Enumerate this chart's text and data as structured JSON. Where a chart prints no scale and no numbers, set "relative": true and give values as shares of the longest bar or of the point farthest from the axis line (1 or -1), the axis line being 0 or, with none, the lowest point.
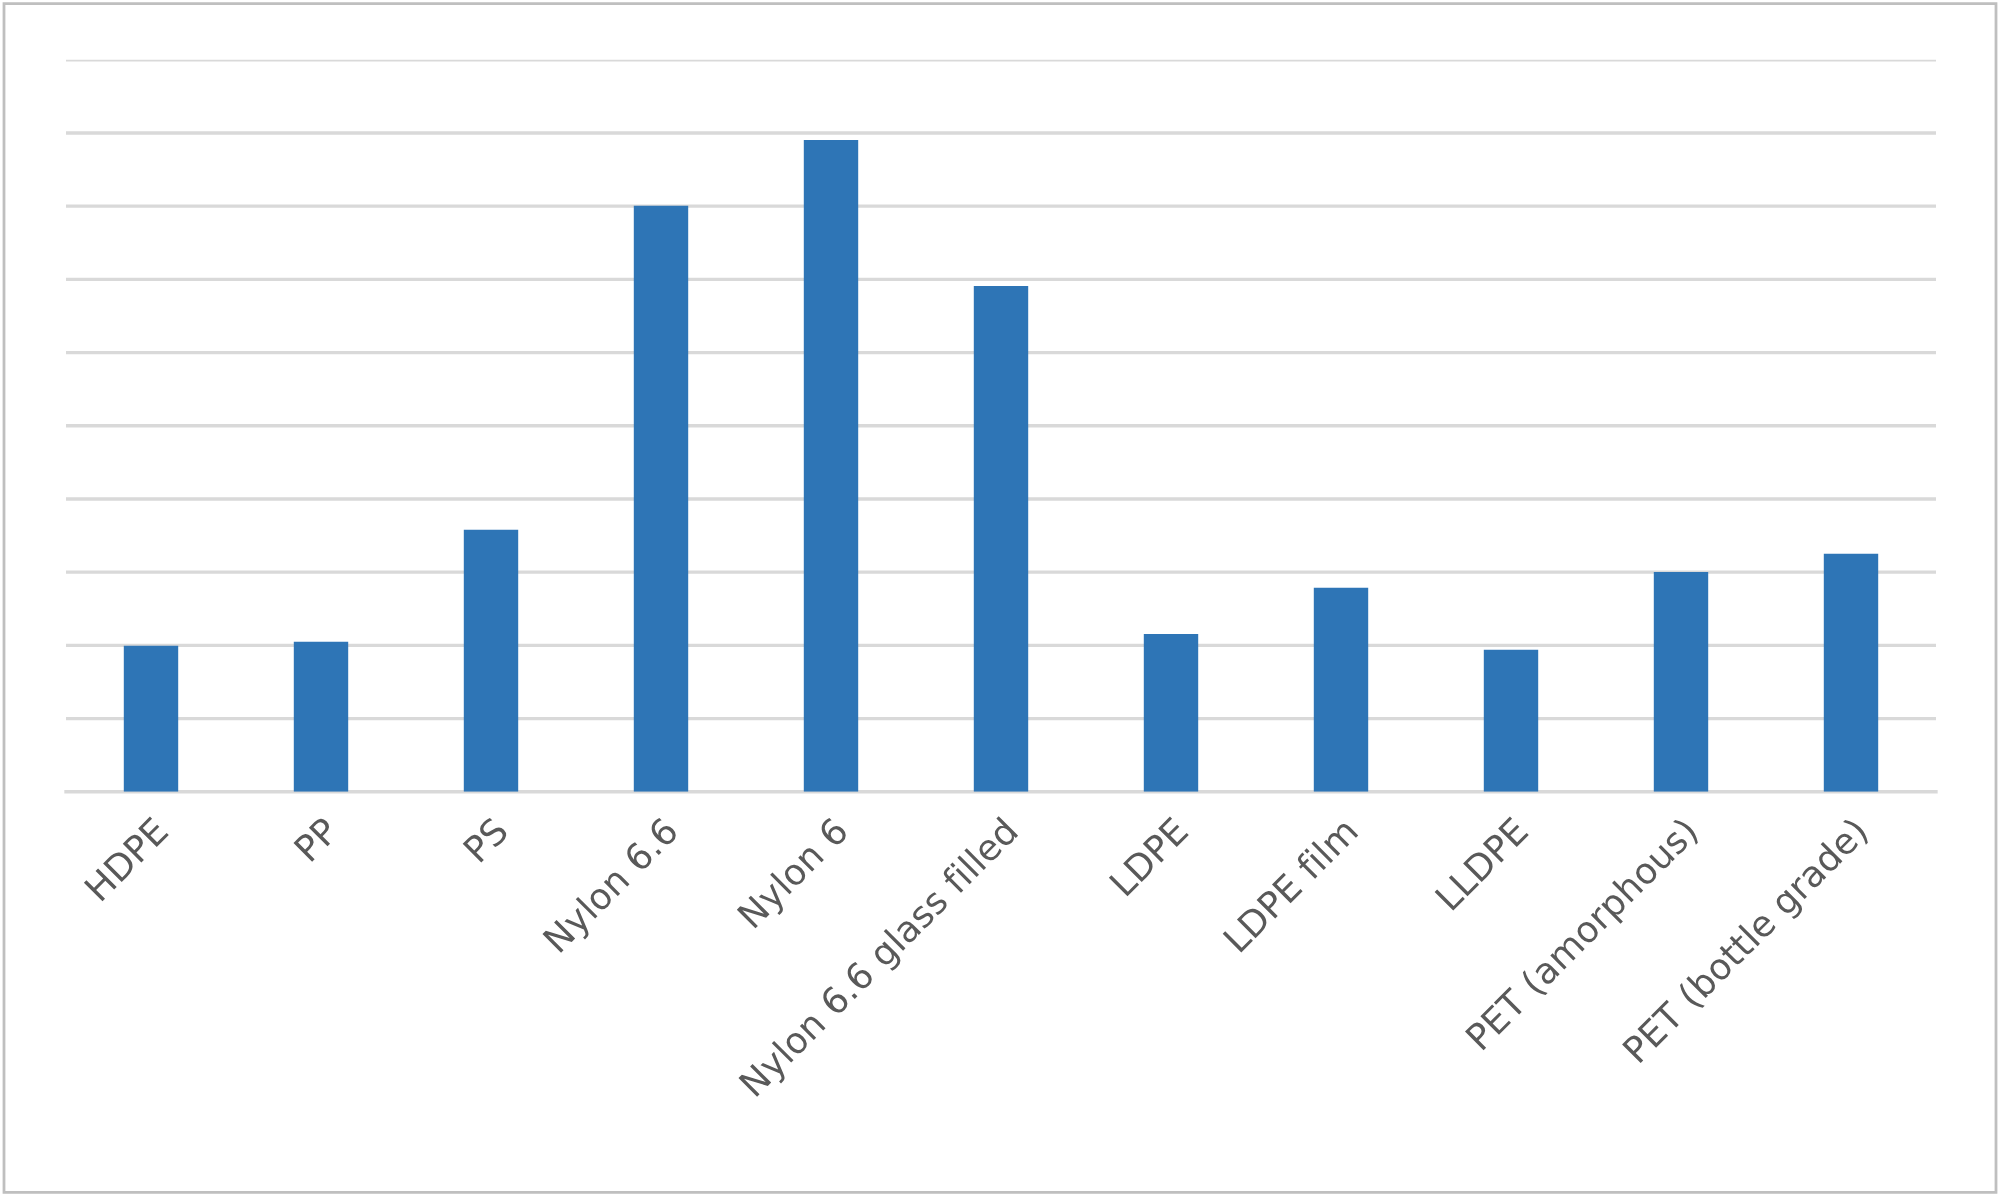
{
  "chart_data": {
    "type": "bar",
    "relative": true,
    "grid": "y",
    "categories": [
      "HDPE",
      "PP",
      "PS",
      "Nylon 6.6",
      "Nylon 6",
      "Nylon 6.6 glass filled",
      "LDPE",
      "LDPE film",
      "LLDPE",
      "PET (amorphous)",
      "PET (bottle grade)"
    ],
    "values": [
      0.224,
      0.23,
      0.402,
      0.899,
      1,
      0.776,
      0.242,
      0.313,
      0.218,
      0.337,
      0.365
    ],
    "color": "#2e75b6"
  }
}
